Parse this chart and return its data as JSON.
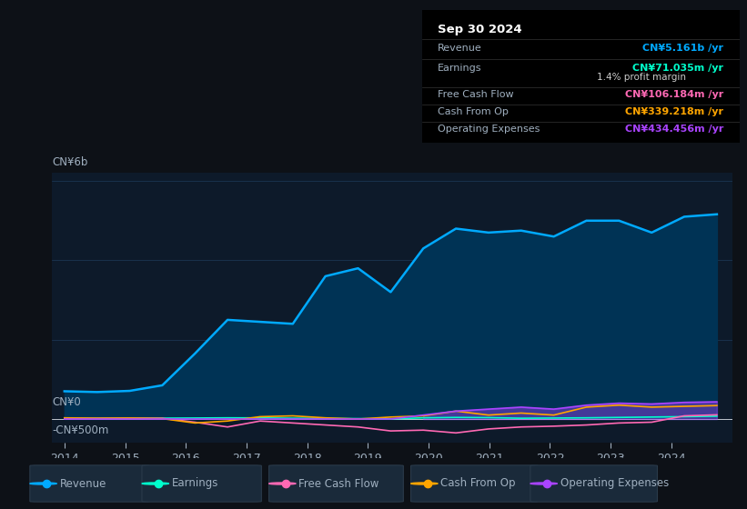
{
  "bg_color": "#0d1117",
  "plot_bg_color": "#0d1a2a",
  "grid_color": "#1e3a5a",
  "text_color": "#a0b0c0",
  "title_color": "#ffffff",
  "y_label_top": "CN¥6b",
  "y_label_zero": "CN¥0",
  "y_label_neg": "-CN¥500m",
  "x_ticks": [
    2014,
    2015,
    2016,
    2017,
    2018,
    2019,
    2020,
    2021,
    2022,
    2023,
    2024
  ],
  "ylim": [
    -600,
    6200
  ],
  "revenue_color": "#00aaff",
  "earnings_color": "#00ffcc",
  "fcf_color": "#ff69b4",
  "cashfromop_color": "#ffa500",
  "opex_color": "#aa44ff",
  "revenue_fill_color": "#003355",
  "tooltip": {
    "date": "Sep 30 2024",
    "revenue_label": "Revenue",
    "revenue_value": "CN¥5.161b",
    "earnings_label": "Earnings",
    "earnings_value": "CN¥71.035m",
    "margin_value": "1.4%",
    "fcf_label": "Free Cash Flow",
    "fcf_value": "CN¥106.184m",
    "cashop_label": "Cash From Op",
    "cashop_value": "CN¥339.218m",
    "opex_label": "Operating Expenses",
    "opex_value": "CN¥434.456m"
  },
  "legend_items": [
    {
      "label": "Revenue",
      "color": "#00aaff"
    },
    {
      "label": "Earnings",
      "color": "#00ffcc"
    },
    {
      "label": "Free Cash Flow",
      "color": "#ff69b4"
    },
    {
      "label": "Cash From Op",
      "color": "#ffa500"
    },
    {
      "label": "Operating Expenses",
      "color": "#aa44ff"
    }
  ],
  "revenue": [
    700,
    680,
    710,
    850,
    1650,
    2500,
    2450,
    2400,
    3600,
    3800,
    3200,
    4300,
    4800,
    4700,
    4750,
    4600,
    5000,
    5000,
    4700,
    5100,
    5161
  ],
  "earnings": [
    20,
    15,
    18,
    22,
    25,
    30,
    28,
    20,
    15,
    10,
    5,
    30,
    40,
    35,
    20,
    25,
    30,
    40,
    50,
    60,
    71
  ],
  "fcf": [
    10,
    15,
    20,
    18,
    -80,
    -200,
    -50,
    -100,
    -150,
    -200,
    -300,
    -280,
    -350,
    -250,
    -200,
    -180,
    -150,
    -100,
    -80,
    80,
    106
  ],
  "cashfromop": [
    30,
    20,
    25,
    10,
    -100,
    -50,
    60,
    80,
    30,
    0,
    50,
    80,
    200,
    100,
    150,
    100,
    300,
    350,
    300,
    320,
    339
  ],
  "opex": [
    0,
    0,
    0,
    0,
    0,
    0,
    0,
    0,
    0,
    0,
    0,
    100,
    200,
    250,
    300,
    250,
    350,
    400,
    380,
    420,
    434
  ]
}
